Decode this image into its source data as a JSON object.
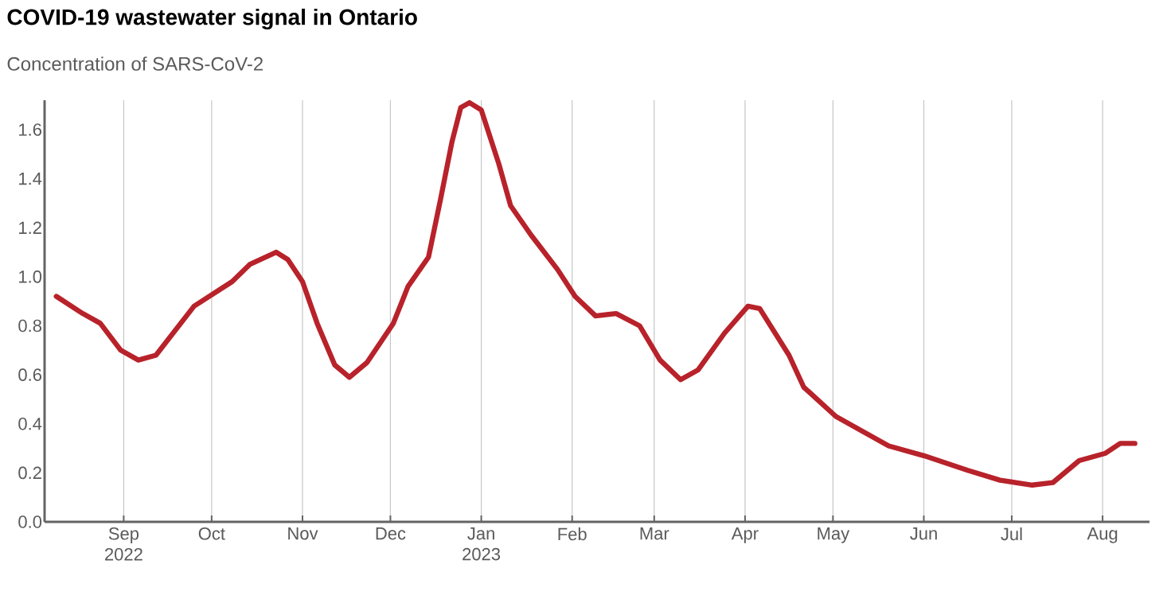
{
  "chart_data": {
    "type": "line",
    "title": "COVID-19 wastewater signal in Ontario",
    "subtitle": "Concentration of SARS-CoV-2",
    "x": [
      "2022-08-09",
      "2022-08-18",
      "2022-08-24",
      "2022-08-31",
      "2022-09-06",
      "2022-09-12",
      "2022-09-25",
      "2022-10-08",
      "2022-10-14",
      "2022-10-23",
      "2022-10-27",
      "2022-11-01",
      "2022-11-06",
      "2022-11-12",
      "2022-11-17",
      "2022-11-23",
      "2022-12-02",
      "2022-12-07",
      "2022-12-14",
      "2022-12-18",
      "2022-12-22",
      "2022-12-25",
      "2022-12-28",
      "2023-01-01",
      "2023-01-07",
      "2023-01-11",
      "2023-01-18",
      "2023-01-27",
      "2023-02-02",
      "2023-02-09",
      "2023-02-16",
      "2023-02-24",
      "2023-03-03",
      "2023-03-10",
      "2023-03-16",
      "2023-03-25",
      "2023-04-02",
      "2023-04-06",
      "2023-04-16",
      "2023-04-21",
      "2023-05-02",
      "2023-05-11",
      "2023-05-20",
      "2023-06-01",
      "2023-06-16",
      "2023-06-27",
      "2023-07-08",
      "2023-07-15",
      "2023-07-24",
      "2023-08-02",
      "2023-08-07",
      "2023-08-12"
    ],
    "series": [
      {
        "color": "#b8222a",
        "values": [
          0.92,
          0.85,
          0.81,
          0.7,
          0.66,
          0.68,
          0.88,
          0.98,
          1.05,
          1.1,
          1.07,
          0.98,
          0.81,
          0.64,
          0.59,
          0.65,
          0.81,
          0.96,
          1.08,
          1.31,
          1.55,
          1.69,
          1.71,
          1.68,
          1.46,
          1.29,
          1.17,
          1.03,
          0.92,
          0.84,
          0.85,
          0.8,
          0.66,
          0.58,
          0.62,
          0.77,
          0.88,
          0.87,
          0.68,
          0.55,
          0.43,
          0.37,
          0.31,
          0.27,
          0.21,
          0.17,
          0.15,
          0.16,
          0.25,
          0.28,
          0.32,
          0.32
        ]
      }
    ],
    "xlim": [
      "2022-08-05",
      "2023-08-17"
    ],
    "xticks": [
      {
        "value": "2022-09-01",
        "label": "Sep 2022"
      },
      {
        "value": "2022-10-01",
        "label": "Oct"
      },
      {
        "value": "2022-11-01",
        "label": "Nov"
      },
      {
        "value": "2022-12-01",
        "label": "Dec"
      },
      {
        "value": "2023-01-01",
        "label": "Jan 2023"
      },
      {
        "value": "2023-02-01",
        "label": "Feb"
      },
      {
        "value": "2023-03-01",
        "label": "Mar"
      },
      {
        "value": "2023-04-01",
        "label": "Apr"
      },
      {
        "value": "2023-05-01",
        "label": "May"
      },
      {
        "value": "2023-06-01",
        "label": "Jun"
      },
      {
        "value": "2023-07-01",
        "label": "Jul"
      },
      {
        "value": "2023-08-01",
        "label": "Aug"
      }
    ],
    "ylim": [
      0,
      1.72
    ],
    "yticks": [
      {
        "value": 0,
        "label": "0.0"
      },
      0.2,
      0.4,
      0.6,
      0.8,
      {
        "value": 1,
        "label": "1.0"
      },
      1.2,
      1.4,
      1.6
    ],
    "grid": "x",
    "marker": "none",
    "line_style": "solid"
  }
}
